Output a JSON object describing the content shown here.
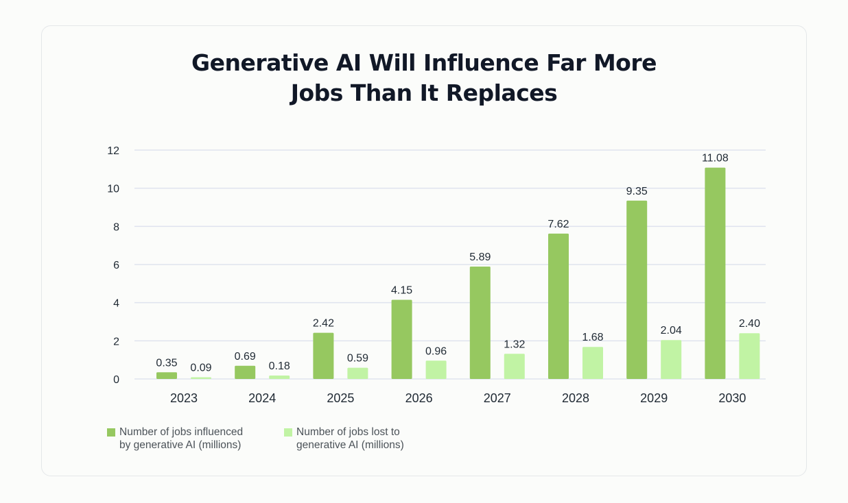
{
  "title_lines": [
    "Generative AI Will Influence Far More",
    "Jobs Than It Replaces"
  ],
  "chart_data": {
    "type": "bar",
    "title": "Generative AI Will Influence Far More Jobs Than It Replaces",
    "categories": [
      "2023",
      "2024",
      "2025",
      "2026",
      "2027",
      "2028",
      "2029",
      "2030"
    ],
    "series": [
      {
        "name": "Number of jobs influenced by generative AI (millions)",
        "color": "#96c860",
        "values": [
          0.35,
          0.69,
          2.42,
          4.15,
          5.89,
          7.62,
          9.35,
          11.08
        ],
        "labels": [
          "0.35",
          "0.69",
          "2.42",
          "4.15",
          "5.89",
          "7.62",
          "9.35",
          "11.08"
        ]
      },
      {
        "name": "Number of jobs lost to generative AI (millions)",
        "color": "#c1f3a4",
        "values": [
          0.09,
          0.18,
          0.59,
          0.96,
          1.32,
          1.68,
          2.04,
          2.4
        ],
        "labels": [
          "0.09",
          "0.18",
          "0.59",
          "0.96",
          "1.32",
          "1.68",
          "2.04",
          "2.40"
        ]
      }
    ],
    "yticks": [
      "0",
      "2",
      "4",
      "6",
      "8",
      "10",
      "12"
    ],
    "ylim": [
      0,
      12
    ],
    "grid": true,
    "gridline_color": "#dfe3ee",
    "legend_position": "bottom-left"
  },
  "legend": {
    "influenced_label": "Number of jobs influenced\nby generative AI (millions)",
    "lost_label": "Number of jobs lost to\ngenerative AI (millions)"
  }
}
